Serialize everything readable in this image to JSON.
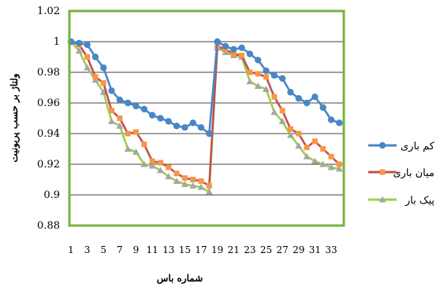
{
  "chart_data": {
    "type": "line",
    "xlabel": "شماره باس",
    "ylabel": "ولتاژ بر حسب پریونیت",
    "ylim": [
      0.88,
      1.02
    ],
    "yticks": [
      "0.88",
      "0.9",
      "0.92",
      "0.94",
      "0.96",
      "0.98",
      "1",
      "1.02"
    ],
    "xlim": [
      1,
      33
    ],
    "xticks": [
      "1",
      "3",
      "5",
      "7",
      "9",
      "11",
      "13",
      "15",
      "17",
      "19",
      "21",
      "23",
      "25",
      "27",
      "29",
      "31",
      "33"
    ],
    "frame_color": "#77b33d",
    "legend_position": "right",
    "series": [
      {
        "name": "کم باری",
        "color": "#4a86c6",
        "marker": "circle",
        "values": [
          1.0,
          0.999,
          0.998,
          0.99,
          0.983,
          0.968,
          0.962,
          0.96,
          0.958,
          0.956,
          0.952,
          0.95,
          0.948,
          0.945,
          0.944,
          0.947,
          0.944,
          0.94,
          1.0,
          0.997,
          0.995,
          0.996,
          0.992,
          0.988,
          0.981,
          0.978,
          0.976,
          0.967,
          0.963,
          0.96,
          0.964,
          0.957,
          0.949,
          0.947
        ]
      },
      {
        "name": "میان باری",
        "color": "#c0504d",
        "marker_color": "#f79646",
        "marker": "square",
        "values": [
          1.0,
          0.998,
          0.99,
          0.977,
          0.973,
          0.955,
          0.95,
          0.94,
          0.941,
          0.933,
          0.922,
          0.921,
          0.918,
          0.914,
          0.911,
          0.91,
          0.909,
          0.906,
          0.997,
          0.995,
          0.992,
          0.991,
          0.98,
          0.979,
          0.977,
          0.964,
          0.955,
          0.943,
          0.94,
          0.931,
          0.935,
          0.93,
          0.925,
          0.92
        ]
      },
      {
        "name": "پیک بار",
        "color": "#9bcf4f",
        "marker_color": "#a6a6a6",
        "marker": "triangle",
        "values": [
          1.0,
          0.994,
          0.983,
          0.975,
          0.967,
          0.948,
          0.945,
          0.93,
          0.928,
          0.92,
          0.919,
          0.916,
          0.912,
          0.909,
          0.907,
          0.906,
          0.905,
          0.902,
          0.996,
          0.993,
          0.991,
          0.99,
          0.974,
          0.971,
          0.969,
          0.954,
          0.948,
          0.939,
          0.932,
          0.925,
          0.922,
          0.92,
          0.918,
          0.917
        ]
      }
    ]
  }
}
